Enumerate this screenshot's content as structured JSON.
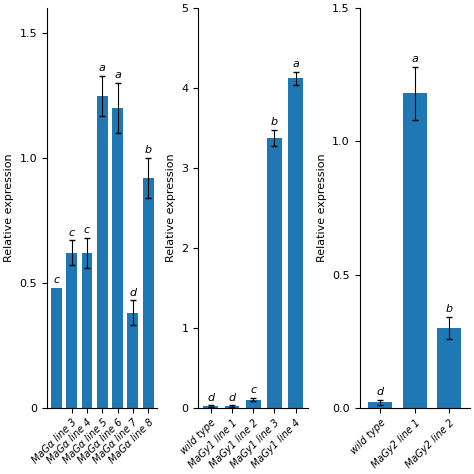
{
  "chart_data": [
    {
      "type": "bar",
      "categories": [
        null,
        "MaGα line 3",
        "MaGα line 4",
        "MaGα line 5",
        "MaGα line 6",
        "MaGα line 7",
        "MaGα line 8"
      ],
      "values": [
        0.48,
        0.62,
        0.62,
        1.25,
        1.2,
        0.38,
        0.92
      ],
      "errors": [
        null,
        0.05,
        0.06,
        0.08,
        0.1,
        0.05,
        0.08
      ],
      "annotations": [
        "c",
        "c",
        "c",
        "a",
        "a",
        "d",
        "b"
      ],
      "y_label": "Relative expression",
      "ylim": [
        0,
        1.6
      ],
      "yticks": [
        0,
        0.5,
        1.0,
        1.5
      ]
    },
    {
      "type": "bar",
      "categories": [
        "wild type",
        "MaGy1 line 1",
        "MaGy1 line 2",
        "MaGy1 line 3",
        "MaGy1 line 4"
      ],
      "values": [
        0.02,
        0.02,
        0.1,
        3.38,
        4.12
      ],
      "errors": [
        0.01,
        0.01,
        0.02,
        0.1,
        0.08
      ],
      "annotations": [
        "d",
        "d",
        "c",
        "b",
        "a"
      ],
      "y_label": "Relative expression",
      "ylim": [
        0,
        5
      ],
      "yticks": [
        0,
        1,
        2,
        3,
        4,
        5
      ]
    },
    {
      "type": "bar",
      "categories": [
        "wild type",
        "MaGy2 line 1",
        "MaGy2 line 2"
      ],
      "values": [
        0.02,
        1.18,
        0.3
      ],
      "errors": [
        0.01,
        0.1,
        0.04
      ],
      "annotations": [
        "d",
        "a",
        "b"
      ],
      "y_label": "Relative expression",
      "ylim": [
        0,
        1.5
      ],
      "yticks": [
        0.0,
        0.5,
        1.0,
        1.5
      ]
    }
  ]
}
